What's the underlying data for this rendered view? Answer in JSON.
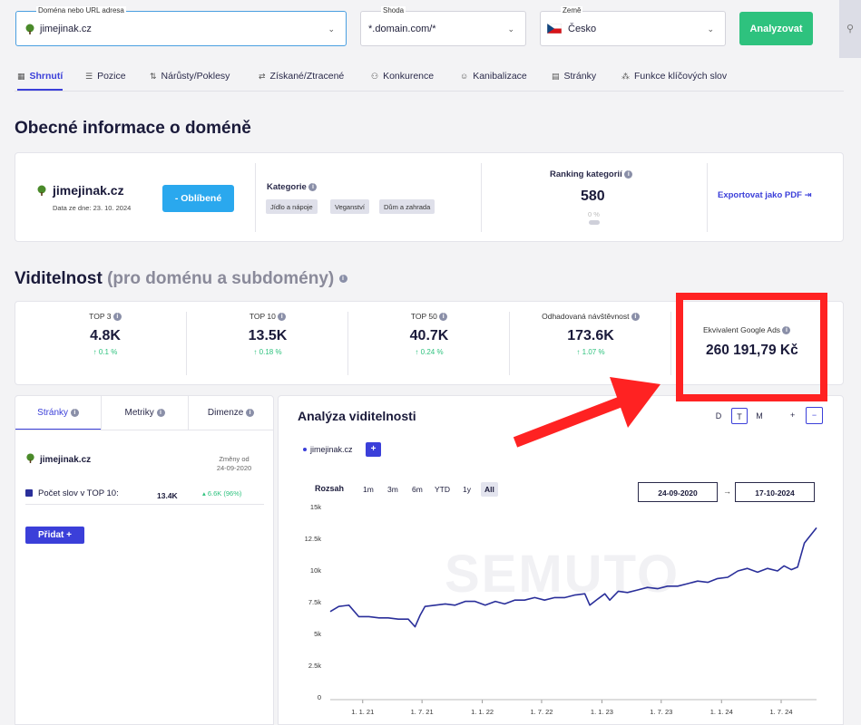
{
  "search": {
    "domain_label": "Doména nebo URL adresa",
    "domain_value": "jimejinak.cz",
    "match_label": "Shoda",
    "match_value": "*.domain.com/*",
    "country_label": "Země",
    "country_value": "Česko",
    "analyze_label": "Analyzovat"
  },
  "tabs": [
    {
      "label": "Shrnutí",
      "icon": "grid-icon"
    },
    {
      "label": "Pozice",
      "icon": "list-icon"
    },
    {
      "label": "Nárůsty/Poklesy",
      "icon": "updown-icon"
    },
    {
      "label": "Získané/Ztracené",
      "icon": "arrows-icon"
    },
    {
      "label": "Konkurence",
      "icon": "people-icon"
    },
    {
      "label": "Kanibalizace",
      "icon": "person-icon"
    },
    {
      "label": "Stránky",
      "icon": "page-icon"
    },
    {
      "label": "Funkce klíčových slov",
      "icon": "nodes-icon"
    }
  ],
  "general": {
    "title": "Obecné informace o doméně",
    "domain": "jimejinak.cz",
    "date": "Data ze dne: 23. 10. 2024",
    "favorite_label": "- Oblíbené",
    "category_title": "Kategorie",
    "tags": [
      "Jídlo a nápoje",
      "Veganství",
      "Dům a zahrada"
    ],
    "ranking_title": "Ranking kategorií",
    "ranking_value": "580",
    "ranking_pct": "0 %",
    "export_label": "Exportovat jako PDF"
  },
  "visibility": {
    "title": "Viditelnost",
    "subtitle": "(pro doménu a subdomény)",
    "metrics": [
      {
        "label": "TOP 3",
        "value": "4.8K",
        "change": "0.1 %"
      },
      {
        "label": "TOP 10",
        "value": "13.5K",
        "change": "0.18 %"
      },
      {
        "label": "TOP 50",
        "value": "40.7K",
        "change": "0.24 %"
      },
      {
        "label": "Odhadovaná návštěvnost",
        "value": "173.6K",
        "change": "1.07 %"
      }
    ],
    "google_ads_label": "Ekvivalent Google Ads",
    "google_ads_value": "260 191,79 Kč"
  },
  "left_panel": {
    "tabs": [
      "Stránky",
      "Metriky",
      "Dimenze"
    ],
    "domain": "jimejinak.cz",
    "changes_label": "Změny od",
    "changes_date": "24-09-2020",
    "metric_label": "Počet slov v TOP 10:",
    "metric_value": "13.4K",
    "metric_change": "6.6K (96%)",
    "add_label": "Přidat +"
  },
  "chart_panel": {
    "title": "Analýza viditelnosti",
    "granularity": [
      "D",
      "T",
      "M"
    ],
    "legend": "jimejinak.cz",
    "range_label": "Rozsah",
    "ranges": [
      "1m",
      "3m",
      "6m",
      "YTD",
      "1y",
      "All"
    ],
    "date_from": "24-09-2020",
    "date_to": "17-10-2024",
    "arrow": "→",
    "watermark": "SEMUTO"
  },
  "chart_data": {
    "type": "line",
    "y_ticks": [
      "15k",
      "12.5k",
      "10k",
      "7.5k",
      "5k",
      "2.5k",
      "0"
    ],
    "x_ticks": [
      "1. 1. 21",
      "1. 7. 21",
      "1. 1. 22",
      "1. 7. 22",
      "1. 1. 23",
      "1. 7. 23",
      "1. 1. 24",
      "1. 7. 24"
    ],
    "ylim": [
      0,
      15000
    ],
    "series": [
      {
        "color": "#2a2f9a",
        "x": [
          "2020-09-24",
          "2020-10-20",
          "2020-11-20",
          "2020-12-20",
          "2021-01-20",
          "2021-02-20",
          "2021-03-20",
          "2021-04-20",
          "2021-05-20",
          "2021-06-10",
          "2021-06-25",
          "2021-07-10",
          "2021-08-10",
          "2021-09-10",
          "2021-10-10",
          "2021-11-10",
          "2021-12-10",
          "2022-01-10",
          "2022-02-10",
          "2022-03-10",
          "2022-04-10",
          "2022-05-10",
          "2022-06-10",
          "2022-07-10",
          "2022-08-10",
          "2022-09-10",
          "2022-10-10",
          "2022-11-10",
          "2022-11-25",
          "2022-12-20",
          "2023-01-10",
          "2023-01-25",
          "2023-02-20",
          "2023-03-20",
          "2023-04-20",
          "2023-05-20",
          "2023-06-20",
          "2023-07-20",
          "2023-08-20",
          "2023-09-20",
          "2023-10-20",
          "2023-11-20",
          "2023-12-20",
          "2024-01-20",
          "2024-02-20",
          "2024-03-20",
          "2024-04-20",
          "2024-05-20",
          "2024-06-20",
          "2024-07-10",
          "2024-08-01",
          "2024-08-20",
          "2024-09-10",
          "2024-10-17"
        ],
        "values": [
          6800,
          7200,
          7300,
          6400,
          6400,
          6300,
          6300,
          6200,
          6200,
          5600,
          6500,
          7200,
          7300,
          7400,
          7300,
          7600,
          7600,
          7300,
          7600,
          7400,
          7700,
          7700,
          7900,
          7700,
          7900,
          7900,
          8100,
          8200,
          7300,
          7800,
          8200,
          7700,
          8400,
          8300,
          8500,
          8700,
          8600,
          8800,
          8800,
          9000,
          9200,
          9100,
          9400,
          9500,
          10000,
          10200,
          9900,
          10200,
          10000,
          10400,
          10100,
          10300,
          12200,
          13400
        ]
      }
    ]
  }
}
